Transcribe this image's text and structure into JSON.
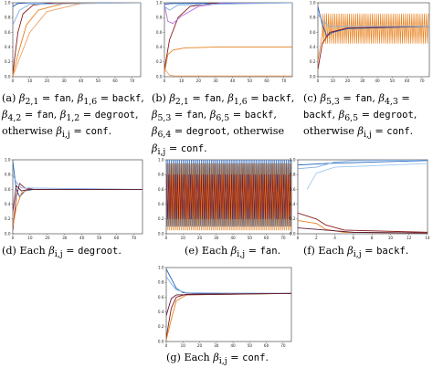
{
  "figures": [
    {
      "id": "a",
      "caption": "(a) β2,1 = fan, β1,6 = backf, β4,2 = fan, β1,2 = degroot, otherwise βi,j = conf."
    },
    {
      "id": "b",
      "caption": "(b) β2,1 = fan, β1,6 = backf, β5,3 = fan, β6,5 = backf, β6,4 = degroot, otherwise βi,j = conf."
    },
    {
      "id": "c",
      "caption": "(c) β5,3 = fan, β4,3 = backf, β6,5 = degroot, otherwise βi,j = conf."
    },
    {
      "id": "d",
      "caption": "(d) Each βi,j = degroot."
    },
    {
      "id": "e",
      "caption": "(e) Each βi,j = fan."
    },
    {
      "id": "f",
      "caption": "(f) Each βi,j = backf."
    },
    {
      "id": "g",
      "caption": "(g) Each βi,j = conf."
    }
  ],
  "chart_data": [
    {
      "id": "a",
      "type": "line",
      "xlim": [
        0,
        75
      ],
      "ylim": [
        0,
        1
      ],
      "x_ticks": [
        0,
        10,
        20,
        30,
        40,
        50,
        60,
        70
      ],
      "y_ticks": [
        0.0,
        0.2,
        0.4,
        0.6,
        0.8,
        1.0
      ],
      "series": [
        {
          "color": "#1f5fbf",
          "points": [
            [
              0,
              0.95
            ],
            [
              3,
              0.99
            ],
            [
              10,
              1.0
            ],
            [
              75,
              1.0
            ]
          ]
        },
        {
          "color": "#8b1a1a",
          "points": [
            [
              0,
              0.05
            ],
            [
              3,
              0.6
            ],
            [
              6,
              0.85
            ],
            [
              12,
              0.97
            ],
            [
              25,
              1.0
            ],
            [
              75,
              1.0
            ]
          ]
        },
        {
          "color": "#e8801e",
          "points": [
            [
              0,
              0.02
            ],
            [
              3,
              0.3
            ],
            [
              8,
              0.7
            ],
            [
              15,
              0.9
            ],
            [
              30,
              0.99
            ],
            [
              75,
              1.0
            ]
          ]
        },
        {
          "color": "#f0a060",
          "points": [
            [
              0,
              0.0
            ],
            [
              4,
              0.25
            ],
            [
              10,
              0.6
            ],
            [
              20,
              0.88
            ],
            [
              40,
              0.99
            ],
            [
              75,
              1.0
            ]
          ]
        },
        {
          "color": "#7fb0e0",
          "points": [
            [
              0,
              0.7
            ],
            [
              4,
              0.9
            ],
            [
              10,
              0.98
            ],
            [
              75,
              1.0
            ]
          ]
        }
      ]
    },
    {
      "id": "b",
      "type": "line",
      "xlim": [
        0,
        75
      ],
      "ylim": [
        0,
        1
      ],
      "x_ticks": [
        0,
        10,
        20,
        30,
        40,
        50,
        60,
        70
      ],
      "y_ticks": [
        0.0,
        0.2,
        0.4,
        0.6,
        0.8,
        1.0
      ],
      "series": [
        {
          "color": "#1f5fbf",
          "points": [
            [
              0,
              0.98
            ],
            [
              5,
              0.99
            ],
            [
              75,
              1.0
            ]
          ]
        },
        {
          "color": "#8b1a1a",
          "points": [
            [
              0,
              0.1
            ],
            [
              3,
              0.5
            ],
            [
              8,
              0.8
            ],
            [
              15,
              0.95
            ],
            [
              30,
              1.0
            ],
            [
              75,
              1.0
            ]
          ]
        },
        {
          "color": "#b070e0",
          "points": [
            [
              0,
              0.98
            ],
            [
              2,
              0.75
            ],
            [
              5,
              0.72
            ],
            [
              10,
              0.82
            ],
            [
              20,
              0.95
            ],
            [
              35,
              1.0
            ],
            [
              75,
              1.0
            ]
          ]
        },
        {
          "color": "#7fb0e0",
          "points": [
            [
              0,
              0.95
            ],
            [
              3,
              0.9
            ],
            [
              8,
              0.97
            ],
            [
              75,
              1.0
            ]
          ]
        },
        {
          "color": "#e8801e",
          "points": [
            [
              0,
              0.05
            ],
            [
              2,
              0.3
            ],
            [
              5,
              0.36
            ],
            [
              12,
              0.39
            ],
            [
              30,
              0.4
            ],
            [
              75,
              0.4
            ]
          ]
        },
        {
          "color": "#f0a060",
          "points": [
            [
              0,
              0.1
            ],
            [
              1,
              0.08
            ],
            [
              3,
              0.02
            ],
            [
              6,
              0.01
            ],
            [
              75,
              0.01
            ]
          ]
        }
      ]
    },
    {
      "id": "c",
      "type": "line",
      "xlim": [
        0,
        75
      ],
      "ylim": [
        0,
        1
      ],
      "x_ticks": [
        0,
        10,
        20,
        30,
        40,
        50,
        60,
        70
      ],
      "y_ticks": [
        0.0,
        0.2,
        0.4,
        0.6,
        0.8,
        1.0
      ],
      "series": [
        {
          "color": "#e8801e",
          "oscillate": {
            "center": 0.65,
            "amplitude": 0.2,
            "period": 1.4,
            "start": 3
          },
          "points": [
            [
              0,
              0.2
            ],
            [
              3,
              0.6
            ]
          ]
        },
        {
          "color": "#1f5fbf",
          "points": [
            [
              0,
              0.95
            ],
            [
              3,
              0.7
            ],
            [
              6,
              0.55
            ],
            [
              10,
              0.6
            ],
            [
              20,
              0.65
            ],
            [
              75,
              0.68
            ]
          ]
        },
        {
          "color": "#8b1a1a",
          "points": [
            [
              0,
              0.1
            ],
            [
              3,
              0.45
            ],
            [
              8,
              0.6
            ],
            [
              20,
              0.66
            ],
            [
              75,
              0.68
            ]
          ]
        },
        {
          "color": "#7fb0e0",
          "points": [
            [
              0,
              0.85
            ],
            [
              3,
              0.75
            ],
            [
              8,
              0.68
            ],
            [
              75,
              0.68
            ]
          ]
        }
      ]
    },
    {
      "id": "d",
      "type": "line",
      "xlim": [
        0,
        75
      ],
      "ylim": [
        0,
        1
      ],
      "x_ticks": [
        0,
        10,
        20,
        30,
        40,
        50,
        60,
        70
      ],
      "y_ticks": [
        0.0,
        0.2,
        0.4,
        0.6,
        0.8,
        1.0
      ],
      "series": [
        {
          "color": "#1f5fbf",
          "points": [
            [
              0,
              0.98
            ],
            [
              2,
              0.6
            ],
            [
              4,
              0.5
            ],
            [
              7,
              0.58
            ],
            [
              12,
              0.6
            ],
            [
              75,
              0.6
            ]
          ]
        },
        {
          "color": "#8b1a1a",
          "points": [
            [
              0,
              0.05
            ],
            [
              2,
              0.5
            ],
            [
              4,
              0.68
            ],
            [
              7,
              0.62
            ],
            [
              12,
              0.6
            ],
            [
              75,
              0.6
            ]
          ]
        },
        {
          "color": "#e8801e",
          "points": [
            [
              0,
              0.1
            ],
            [
              2,
              0.35
            ],
            [
              5,
              0.55
            ],
            [
              9,
              0.6
            ],
            [
              75,
              0.6
            ]
          ]
        },
        {
          "color": "#7fb0e0",
          "points": [
            [
              0,
              0.8
            ],
            [
              2,
              0.7
            ],
            [
              5,
              0.62
            ],
            [
              75,
              0.6
            ]
          ]
        },
        {
          "color": "#5a1a3a",
          "points": [
            [
              0,
              0.3
            ],
            [
              2,
              0.65
            ],
            [
              5,
              0.58
            ],
            [
              9,
              0.6
            ],
            [
              75,
              0.6
            ]
          ]
        }
      ]
    },
    {
      "id": "e",
      "type": "line",
      "xlim": [
        0,
        75
      ],
      "ylim": [
        0,
        1
      ],
      "x_ticks": [
        0,
        10,
        20,
        30,
        40,
        50,
        60,
        70
      ],
      "y_ticks": [
        0.0,
        0.2,
        0.4,
        0.6,
        0.8,
        1.0
      ],
      "series": [
        {
          "color": "#1f5fbf",
          "oscillate": {
            "center": 0.55,
            "amplitude": 0.45,
            "period": 1.0,
            "start": 0
          },
          "points": []
        },
        {
          "color": "#e8801e",
          "oscillate": {
            "center": 0.5,
            "amplitude": 0.45,
            "period": 1.0,
            "start": 0.5
          },
          "points": []
        },
        {
          "color": "#8b1a1a",
          "oscillate": {
            "center": 0.5,
            "amplitude": 0.3,
            "period": 1.3,
            "start": 0.2
          },
          "points": []
        }
      ]
    },
    {
      "id": "f",
      "type": "line",
      "xlim": [
        0,
        14
      ],
      "ylim": [
        0,
        1
      ],
      "x_ticks": [
        0,
        2,
        4,
        6,
        8,
        10,
        12,
        14
      ],
      "y_ticks": [
        0.0,
        0.2,
        0.4,
        0.6,
        0.8,
        1.0
      ],
      "series": [
        {
          "color": "#1f5fbf",
          "points": [
            [
              0,
              0.93
            ],
            [
              3,
              0.95
            ],
            [
              8,
              0.97
            ],
            [
              14,
              0.99
            ]
          ]
        },
        {
          "color": "#7fb0e0",
          "points": [
            [
              0,
              0.88
            ],
            [
              2,
              0.9
            ],
            [
              4,
              0.97
            ],
            [
              6,
              0.99
            ],
            [
              14,
              1.0
            ]
          ]
        },
        {
          "color": "#a0c8f0",
          "points": [
            [
              1,
              0.6
            ],
            [
              2,
              0.82
            ],
            [
              4,
              0.9
            ],
            [
              14,
              0.95
            ]
          ]
        },
        {
          "color": "#8b1a1a",
          "points": [
            [
              0,
              0.28
            ],
            [
              2,
              0.2
            ],
            [
              3,
              0.12
            ],
            [
              5,
              0.05
            ],
            [
              14,
              0.02
            ]
          ]
        },
        {
          "color": "#e8801e",
          "points": [
            [
              0,
              0.18
            ],
            [
              2,
              0.14
            ],
            [
              3,
              0.06
            ],
            [
              5,
              0.02
            ],
            [
              14,
              0.01
            ]
          ]
        },
        {
          "color": "#5a1a3a",
          "points": [
            [
              0,
              0.08
            ],
            [
              3,
              0.05
            ],
            [
              6,
              0.02
            ],
            [
              14,
              0.01
            ]
          ]
        }
      ]
    },
    {
      "id": "g",
      "type": "line",
      "xlim": [
        0,
        75
      ],
      "ylim": [
        0,
        1
      ],
      "x_ticks": [
        0,
        10,
        20,
        30,
        40,
        50,
        60,
        70
      ],
      "y_ticks": [
        0.0,
        0.2,
        0.4,
        0.6,
        0.8,
        1.0
      ],
      "series": [
        {
          "color": "#1f5fbf",
          "points": [
            [
              0,
              0.98
            ],
            [
              3,
              0.85
            ],
            [
              6,
              0.72
            ],
            [
              10,
              0.66
            ],
            [
              20,
              0.65
            ],
            [
              75,
              0.65
            ]
          ]
        },
        {
          "color": "#7fb0e0",
          "points": [
            [
              0,
              0.88
            ],
            [
              3,
              0.78
            ],
            [
              6,
              0.7
            ],
            [
              12,
              0.66
            ],
            [
              75,
              0.65
            ]
          ]
        },
        {
          "color": "#8b1a1a",
          "points": [
            [
              0,
              0.05
            ],
            [
              3,
              0.45
            ],
            [
              6,
              0.6
            ],
            [
              12,
              0.64
            ],
            [
              75,
              0.65
            ]
          ]
        },
        {
          "color": "#e8801e",
          "points": [
            [
              0,
              0.02
            ],
            [
              3,
              0.3
            ],
            [
              6,
              0.55
            ],
            [
              12,
              0.63
            ],
            [
              75,
              0.65
            ]
          ]
        },
        {
          "color": "#5a1a3a",
          "points": [
            [
              0,
              0.35
            ],
            [
              3,
              0.58
            ],
            [
              6,
              0.63
            ],
            [
              75,
              0.65
            ]
          ]
        }
      ]
    }
  ]
}
